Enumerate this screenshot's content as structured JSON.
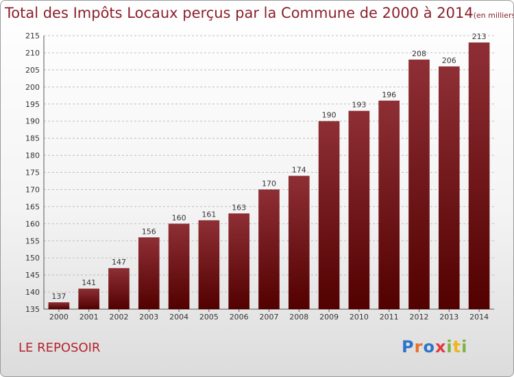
{
  "header": {
    "title": "Total des Impôts Locaux perçus par la Commune de 2000 à 2014",
    "unit": "(en milliers d'€)"
  },
  "footer": {
    "commune": "LE REPOSOIR",
    "logo_letters": [
      "P",
      "r",
      "o",
      "x",
      "i",
      "t",
      "i"
    ]
  },
  "colors": {
    "bar_top": "#8e2f35",
    "bar_bottom": "#520000",
    "title": "#8a1f2a",
    "grid": "#bdbdbd"
  },
  "chart_data": {
    "type": "bar",
    "title": "Total des Impôts Locaux perçus par la Commune de 2000 à 2014",
    "subtitle": "(en milliers d'€)",
    "xlabel": "",
    "ylabel": "",
    "categories": [
      "2000",
      "2001",
      "2002",
      "2003",
      "2004",
      "2005",
      "2006",
      "2007",
      "2008",
      "2009",
      "2010",
      "2011",
      "2012",
      "2013",
      "2014"
    ],
    "values": [
      137,
      141,
      147,
      156,
      160,
      161,
      163,
      170,
      174,
      190,
      193,
      196,
      208,
      206,
      213
    ],
    "ylim": [
      135,
      215
    ],
    "yticks": [
      135,
      140,
      145,
      150,
      155,
      160,
      165,
      170,
      175,
      180,
      185,
      190,
      195,
      200,
      205,
      210,
      215
    ],
    "grid": true,
    "legend": "none"
  }
}
